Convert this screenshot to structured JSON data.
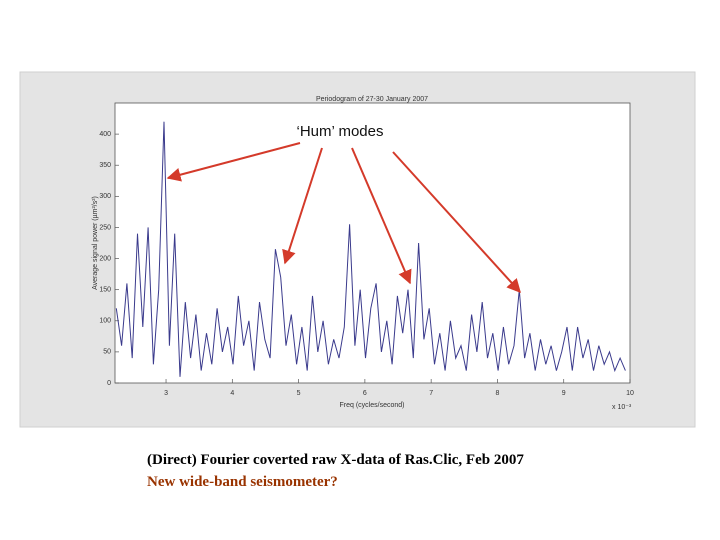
{
  "chart_data": {
    "type": "line",
    "title": "Periodogram of 27-30 January 2007",
    "xlabel": "Freq (cycles/second)",
    "ylabel": "Average signal power (µm²/s²)",
    "x_scale_label": "x 10⁻³",
    "annotation": "‘Hum’ modes",
    "xlim": [
      2.23,
      10
    ],
    "ylim": [
      0,
      450
    ],
    "xticks": [
      3,
      4,
      5,
      6,
      7,
      8,
      9,
      10
    ],
    "yticks": [
      0,
      50,
      100,
      150,
      200,
      250,
      300,
      350,
      400
    ],
    "grid": false,
    "series": [
      {
        "name": "Periodogram",
        "color": "#3a3a8c",
        "x": [
          2.25,
          2.33,
          2.41,
          2.49,
          2.57,
          2.65,
          2.73,
          2.81,
          2.89,
          2.97,
          3.05,
          3.13,
          3.21,
          3.29,
          3.37,
          3.45,
          3.53,
          3.61,
          3.69,
          3.77,
          3.85,
          3.93,
          4.01,
          4.09,
          4.17,
          4.25,
          4.33,
          4.41,
          4.49,
          4.57,
          4.65,
          4.73,
          4.81,
          4.89,
          4.97,
          5.05,
          5.13,
          5.21,
          5.29,
          5.37,
          5.45,
          5.53,
          5.61,
          5.69,
          5.77,
          5.85,
          5.93,
          6.01,
          6.09,
          6.17,
          6.25,
          6.33,
          6.41,
          6.49,
          6.57,
          6.65,
          6.73,
          6.81,
          6.89,
          6.97,
          7.05,
          7.13,
          7.21,
          7.29,
          7.37,
          7.45,
          7.53,
          7.61,
          7.69,
          7.77,
          7.85,
          7.93,
          8.01,
          8.09,
          8.17,
          8.25,
          8.33,
          8.41,
          8.49,
          8.57,
          8.65,
          8.73,
          8.81,
          8.89,
          8.97,
          9.05,
          9.13,
          9.21,
          9.29,
          9.37,
          9.45,
          9.53,
          9.61,
          9.69,
          9.77,
          9.85,
          9.93
        ],
        "values": [
          120,
          60,
          160,
          40,
          240,
          90,
          250,
          30,
          150,
          420,
          60,
          240,
          10,
          130,
          40,
          110,
          20,
          80,
          30,
          120,
          50,
          90,
          30,
          140,
          60,
          100,
          20,
          130,
          70,
          40,
          215,
          170,
          60,
          110,
          30,
          90,
          20,
          140,
          50,
          100,
          30,
          70,
          40,
          90,
          255,
          60,
          150,
          40,
          120,
          160,
          50,
          100,
          30,
          140,
          80,
          150,
          40,
          225,
          70,
          120,
          30,
          80,
          20,
          100,
          40,
          60,
          20,
          110,
          50,
          130,
          40,
          80,
          20,
          90,
          30,
          60,
          150,
          40,
          80,
          20,
          70,
          30,
          60,
          20,
          50,
          90,
          20,
          90,
          40,
          70,
          20,
          60,
          30,
          50,
          20,
          40,
          20
        ]
      }
    ]
  },
  "caption": [
    "(Direct) Fourier coverted raw X-data of Ras.Clic, Feb 2007",
    "New wide-band seismometer?"
  ]
}
